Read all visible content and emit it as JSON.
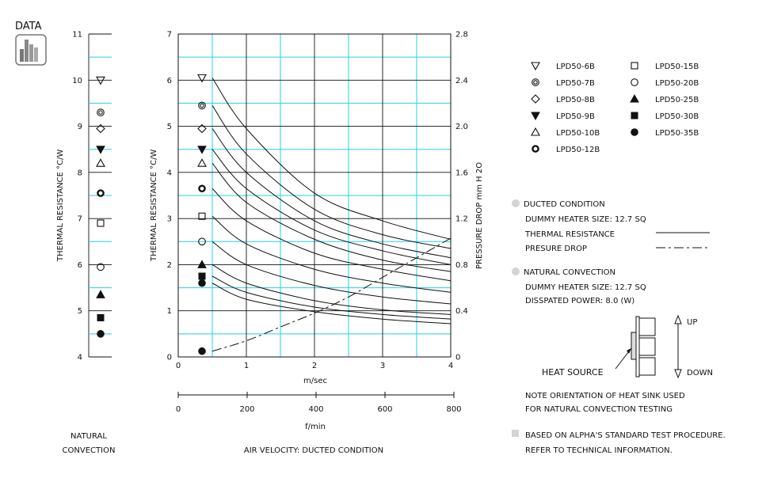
{
  "logo": {
    "label": "DATA"
  },
  "natural_panel": {
    "ylabel": "THERMAL RESISTANCE  °C/W",
    "ticks": [
      4,
      5,
      6,
      7,
      8,
      9,
      10,
      11
    ],
    "caption_line1": "NATURAL",
    "caption_line2": "CONVECTION"
  },
  "ducted_panel": {
    "caption": "AIR VELOCITY:  DUCTED CONDITION",
    "m_sec_label": "m/sec",
    "f_min_label": "f/min",
    "f_min_ticks": [
      0,
      200,
      400,
      600,
      800
    ]
  },
  "legend": {
    "items": [
      {
        "symbol": "tri-down-open",
        "label": "LPD50-6B"
      },
      {
        "symbol": "double-circle",
        "label": "LPD50-7B"
      },
      {
        "symbol": "diamond-open",
        "label": "LPD50-8B"
      },
      {
        "symbol": "tri-down-filled",
        "label": "LPD50-9B"
      },
      {
        "symbol": "tri-up-open",
        "label": "LPD50-10B"
      },
      {
        "symbol": "thick-circle",
        "label": "LPD50-12B"
      },
      {
        "symbol": "square-open",
        "label": "LPD50-15B"
      },
      {
        "symbol": "circle-open",
        "label": "LPD50-20B"
      },
      {
        "symbol": "tri-up-filled",
        "label": "LPD50-25B"
      },
      {
        "symbol": "square-filled",
        "label": "LPD50-30B"
      },
      {
        "symbol": "circle-filled",
        "label": "LPD50-35B"
      }
    ]
  },
  "notes": {
    "ducted_title": "DUCTED CONDITION",
    "ducted_heater": "DUMMY HEATER SIZE: 12.7 SQ",
    "thermal_resistance": "THERMAL RESISTANCE",
    "pressure_drop": "PRESURE DROP",
    "natural_title": "NATURAL CONVECTION",
    "natural_heater": "DUMMY HEATER SIZE: 12.7 SQ",
    "natural_power": "DISSPATED POWER: 8.0 (W)",
    "up": "UP",
    "down": "DOWN",
    "heat_source": "HEAT SOURCE",
    "orientation_line1": "NOTE ORIENTATION OF HEAT SINK USED",
    "orientation_line2": "FOR NATURAL CONVECTION TESTING",
    "standard_line1": "BASED ON ALPHA'S STANDARD TEST PROCEDURE.",
    "standard_line2": "REFER TO TECHNICAL INFORMATION."
  },
  "chart_data": [
    {
      "type": "scatter",
      "title": "",
      "xlabel": "NATURAL CONVECTION",
      "ylabel": "THERMAL RESISTANCE  °C/W",
      "ylim": [
        4,
        11
      ],
      "grid": true,
      "points": [
        {
          "series": "LPD50-6B",
          "y": 10.0
        },
        {
          "series": "LPD50-7B",
          "y": 9.3
        },
        {
          "series": "LPD50-8B",
          "y": 8.95
        },
        {
          "series": "LPD50-9B",
          "y": 8.5
        },
        {
          "series": "LPD50-10B",
          "y": 8.2
        },
        {
          "series": "LPD50-12B",
          "y": 7.55
        },
        {
          "series": "LPD50-15B",
          "y": 6.9
        },
        {
          "series": "LPD50-20B",
          "y": 5.95
        },
        {
          "series": "LPD50-25B",
          "y": 5.35
        },
        {
          "series": "LPD50-30B",
          "y": 4.85
        },
        {
          "series": "LPD50-35B",
          "y": 4.5
        }
      ]
    },
    {
      "type": "line",
      "title": "",
      "xlabel": "m/sec",
      "ylabel": "THERMAL RESISTANCE  °C/W",
      "y2label": "PRESSURE DROP   mm H 2O",
      "xlim": [
        0,
        4
      ],
      "ylim": [
        0,
        7
      ],
      "y2lim": [
        0,
        2.8
      ],
      "xticks": [
        0,
        1,
        2,
        3,
        4
      ],
      "yticks": [
        0,
        1,
        2,
        3,
        4,
        5,
        6,
        7
      ],
      "y2ticks": [
        0,
        0.4,
        0.8,
        1.2,
        1.6,
        2.0,
        2.4,
        2.8
      ],
      "grid": true,
      "x": [
        0.5,
        1.0,
        2.0,
        3.0,
        4.0
      ],
      "series": [
        {
          "name": "LPD50-6B",
          "marker_y": 6.05,
          "values": [
            6.05,
            4.95,
            3.55,
            2.95,
            2.55
          ]
        },
        {
          "name": "LPD50-7B",
          "marker_y": 5.45,
          "values": [
            5.45,
            4.4,
            3.2,
            2.65,
            2.35
          ]
        },
        {
          "name": "LPD50-8B",
          "marker_y": 4.95,
          "values": [
            4.95,
            4.0,
            2.95,
            2.45,
            2.15
          ]
        },
        {
          "name": "LPD50-9B",
          "marker_y": 4.5,
          "values": [
            4.5,
            3.65,
            2.75,
            2.3,
            2.0
          ]
        },
        {
          "name": "LPD50-10B",
          "marker_y": 4.2,
          "values": [
            4.2,
            3.35,
            2.55,
            2.1,
            1.85
          ]
        },
        {
          "name": "LPD50-12B",
          "marker_y": 3.65,
          "values": [
            3.65,
            2.95,
            2.25,
            1.9,
            1.65
          ]
        },
        {
          "name": "LPD50-15B",
          "marker_y": 3.05,
          "values": [
            3.05,
            2.45,
            1.9,
            1.6,
            1.4
          ]
        },
        {
          "name": "LPD50-20B",
          "marker_y": 2.5,
          "values": [
            2.5,
            2.0,
            1.55,
            1.3,
            1.15
          ]
        },
        {
          "name": "LPD50-25B",
          "marker_y": 2.0,
          "values": [
            2.0,
            1.6,
            1.22,
            1.02,
            0.92
          ]
        },
        {
          "name": "LPD50-30B",
          "marker_y": 1.75,
          "values": [
            1.75,
            1.4,
            1.08,
            0.92,
            0.82
          ]
        },
        {
          "name": "LPD50-35B",
          "marker_y": 1.6,
          "values": [
            1.6,
            1.25,
            0.98,
            0.82,
            0.72
          ]
        }
      ],
      "pressure_drop": {
        "name": "PRESURE DROP",
        "x": [
          0.5,
          1.0,
          1.5,
          2.0,
          2.5,
          3.0,
          3.5,
          4.0
        ],
        "values": [
          0.05,
          0.14,
          0.26,
          0.38,
          0.52,
          0.69,
          0.86,
          1.03
        ]
      },
      "pressure_drop_marker": {
        "series": "LPD50-35B",
        "y2": 0.05
      }
    }
  ]
}
